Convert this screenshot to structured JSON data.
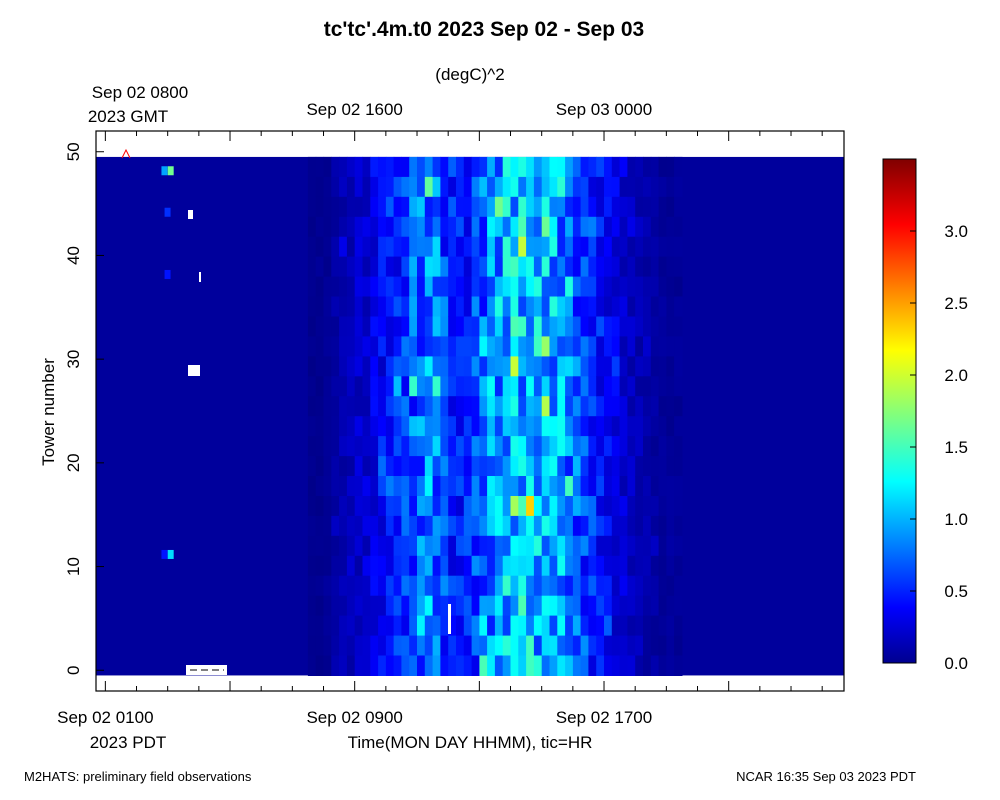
{
  "chart_data": {
    "type": "heatmap",
    "title": "tc'tc'.4m.t0 2023 Sep 02 - Sep 03",
    "units": "(degC)^2",
    "ylabel": "Tower number",
    "xlabel": "Time(MON DAY HHMM), tic=HR",
    "x_start_label": "2023 PDT",
    "top_start_label": "2023 GMT",
    "top_ticks": [
      "Sep 02 0800",
      "Sep 02 1600",
      "Sep 03 0000"
    ],
    "bottom_ticks": [
      "Sep 02 0100",
      "Sep 02 0900",
      "Sep 02 1700"
    ],
    "xlim_hours": [
      -0.3,
      23.7
    ],
    "ylim": [
      -2,
      52
    ],
    "yticks": [
      0,
      10,
      20,
      30,
      40,
      50
    ],
    "towers": [
      0,
      49
    ],
    "colorbar": {
      "range": [
        0.0,
        3.5
      ],
      "ticks": [
        "0.0",
        "0.5",
        "1.0",
        "1.5",
        "2.0",
        "2.5",
        "3.0"
      ],
      "tick_values": [
        0.0,
        0.5,
        1.0,
        1.5,
        2.0,
        2.5,
        3.0
      ],
      "colormap": "jet"
    },
    "time_profile": {
      "hours": [
        0,
        7,
        7.5,
        8.5,
        9.0,
        9.5,
        10.0,
        10.5,
        11.0,
        11.5,
        12.0,
        12.5,
        13.0,
        13.5,
        14.0,
        14.5,
        15.0,
        15.5,
        16.0,
        16.5,
        17.0,
        17.5,
        18.0,
        23.7
      ],
      "values": [
        0.05,
        0.05,
        0.15,
        0.3,
        0.45,
        0.55,
        0.8,
        0.95,
        0.55,
        0.5,
        0.7,
        1.0,
        1.05,
        1.1,
        1.05,
        1.0,
        0.8,
        0.6,
        0.45,
        0.3,
        0.2,
        0.12,
        0.08,
        0.05
      ]
    },
    "missing_marker": "^",
    "colors": {
      "background": "#00009c",
      "missing": "#ffffff",
      "marker": "#ff0000"
    }
  },
  "footer": {
    "left": "M2HATS: preliminary field observations",
    "right": "NCAR 16:35 Sep 03 2023 PDT"
  }
}
